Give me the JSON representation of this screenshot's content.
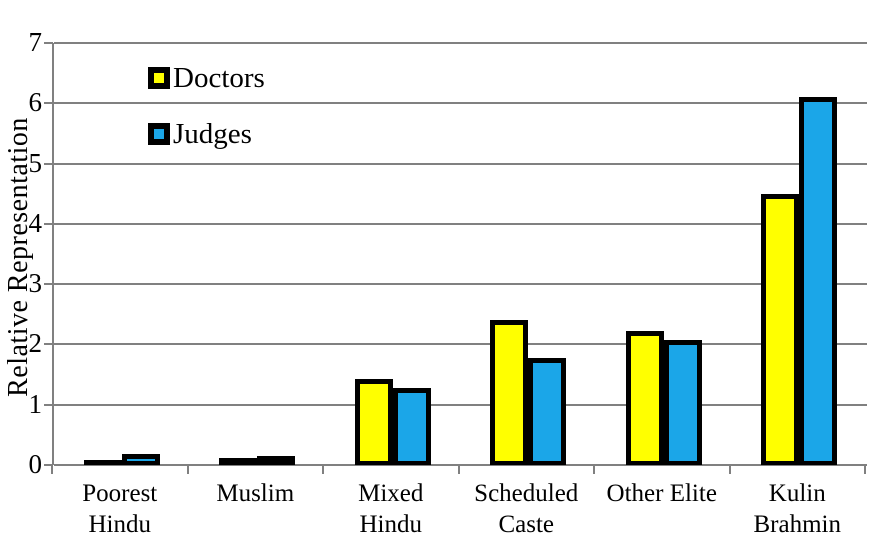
{
  "chart_data": {
    "type": "bar",
    "title": "",
    "ylabel": "Relative Representation",
    "xlabel": "",
    "ylim": [
      0,
      7
    ],
    "ytick_step": 1,
    "yticks": [
      "0",
      "1",
      "2",
      "3",
      "4",
      "5",
      "6",
      "7"
    ],
    "grid": true,
    "legend_position": "top-left-inside",
    "categories": [
      "Poorest Hindu",
      "Muslim",
      "Mixed Hindu",
      "Scheduled Caste",
      "Other Elite",
      "Kulin Brahmin"
    ],
    "series": [
      {
        "name": "Doctors",
        "color": "#FFFF00",
        "values": [
          0.08,
          0.12,
          1.42,
          2.4,
          2.22,
          4.5
        ]
      },
      {
        "name": "Judges",
        "color": "#1BA6E8",
        "values": [
          0.19,
          0.15,
          1.28,
          1.77,
          2.08,
          6.1
        ]
      }
    ],
    "styles": {
      "bar_border_color": "#000000",
      "gridline_color": "#808080",
      "axis_color": "#808080",
      "text_color": "#000000",
      "background": "#FFFFFF"
    }
  }
}
